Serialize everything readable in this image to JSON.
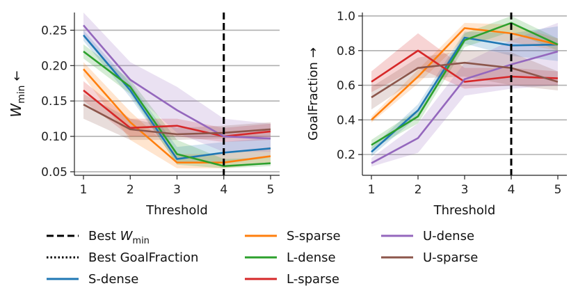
{
  "colors": {
    "S-dense": "#1f77b4",
    "S-sparse": "#ff7f0e",
    "L-dense": "#2ca02c",
    "L-sparse": "#d62728",
    "U-dense": "#9467bd",
    "U-sparse": "#8c564b",
    "best_line": "#000000"
  },
  "legend": {
    "best_w": {
      "prefix": "Best ",
      "symbol": "W",
      "sub": "min"
    },
    "best_goal": "Best GoalFraction",
    "series": [
      "S-dense",
      "S-sparse",
      "L-dense",
      "L-sparse",
      "U-dense",
      "U-sparse"
    ]
  },
  "chart_data": [
    {
      "type": "line",
      "xlabel": "Threshold",
      "ylabel": {
        "symbol": "W",
        "sub": "min",
        "arrow": "←"
      },
      "x": [
        1,
        2,
        3,
        4,
        5
      ],
      "xticks": [
        "1",
        "2",
        "3",
        "4",
        "5"
      ],
      "ylim": [
        0.045,
        0.275
      ],
      "yticks": [
        "0.05",
        "0.10",
        "0.15",
        "0.20",
        "0.25"
      ],
      "ytick_values": [
        0.05,
        0.1,
        0.15,
        0.2,
        0.25
      ],
      "grid": "horizontal",
      "best_line_x": 4,
      "series": [
        {
          "name": "S-dense",
          "values": [
            0.243,
            0.165,
            0.068,
            0.077,
            0.083
          ],
          "lower": [
            0.235,
            0.155,
            0.062,
            0.062,
            0.07
          ],
          "upper": [
            0.25,
            0.175,
            0.085,
            0.092,
            0.098
          ]
        },
        {
          "name": "S-sparse",
          "values": [
            0.195,
            0.12,
            0.063,
            0.063,
            0.072
          ],
          "lower": [
            0.185,
            0.095,
            0.055,
            0.055,
            0.062
          ],
          "upper": [
            0.205,
            0.135,
            0.075,
            0.075,
            0.085
          ]
        },
        {
          "name": "L-dense",
          "values": [
            0.22,
            0.17,
            0.075,
            0.058,
            0.062
          ],
          "lower": [
            0.21,
            0.16,
            0.06,
            0.055,
            0.058
          ],
          "upper": [
            0.23,
            0.18,
            0.095,
            0.068,
            0.07
          ]
        },
        {
          "name": "L-sparse",
          "values": [
            0.165,
            0.112,
            0.115,
            0.1,
            0.107
          ],
          "lower": [
            0.15,
            0.1,
            0.1,
            0.092,
            0.095
          ],
          "upper": [
            0.178,
            0.125,
            0.125,
            0.112,
            0.118
          ]
        },
        {
          "name": "U-dense",
          "values": [
            0.257,
            0.18,
            0.137,
            0.1,
            0.097
          ],
          "lower": [
            0.24,
            0.165,
            0.105,
            0.078,
            0.078
          ],
          "upper": [
            0.275,
            0.205,
            0.17,
            0.125,
            0.118
          ]
        },
        {
          "name": "U-sparse",
          "values": [
            0.145,
            0.11,
            0.103,
            0.105,
            0.11
          ],
          "lower": [
            0.125,
            0.095,
            0.095,
            0.097,
            0.1
          ],
          "upper": [
            0.16,
            0.125,
            0.112,
            0.115,
            0.12
          ]
        }
      ]
    },
    {
      "type": "line",
      "xlabel": "Threshold",
      "ylabel": {
        "text": "GoalFraction",
        "arrow": "→"
      },
      "x": [
        1,
        2,
        3,
        4,
        5
      ],
      "xticks": [
        "1",
        "2",
        "3",
        "4",
        "5"
      ],
      "ylim": [
        0.08,
        1.02
      ],
      "yticks": [
        "0.2",
        "0.4",
        "0.6",
        "0.8",
        "1.0"
      ],
      "ytick_values": [
        0.2,
        0.4,
        0.6,
        0.8,
        1.0
      ],
      "grid": "horizontal",
      "best_line_x": 4,
      "series": [
        {
          "name": "S-dense",
          "values": [
            0.215,
            0.455,
            0.875,
            0.83,
            0.835
          ],
          "lower": [
            0.19,
            0.42,
            0.84,
            0.77,
            0.74
          ],
          "upper": [
            0.24,
            0.49,
            0.91,
            0.9,
            0.94
          ]
        },
        {
          "name": "S-sparse",
          "values": [
            0.4,
            0.65,
            0.93,
            0.9,
            0.835
          ],
          "lower": [
            0.385,
            0.61,
            0.87,
            0.85,
            0.8
          ],
          "upper": [
            0.42,
            0.69,
            0.96,
            0.95,
            0.87
          ]
        },
        {
          "name": "L-dense",
          "values": [
            0.255,
            0.42,
            0.86,
            0.96,
            0.835
          ],
          "lower": [
            0.23,
            0.38,
            0.82,
            0.91,
            0.8
          ],
          "upper": [
            0.285,
            0.46,
            0.9,
            1.0,
            0.87
          ]
        },
        {
          "name": "L-sparse",
          "values": [
            0.62,
            0.8,
            0.62,
            0.65,
            0.64
          ],
          "lower": [
            0.56,
            0.7,
            0.58,
            0.6,
            0.6
          ],
          "upper": [
            0.68,
            0.9,
            0.7,
            0.7,
            0.68
          ]
        },
        {
          "name": "U-dense",
          "values": [
            0.15,
            0.295,
            0.635,
            0.72,
            0.795
          ],
          "lower": [
            0.13,
            0.21,
            0.54,
            0.58,
            0.6
          ],
          "upper": [
            0.18,
            0.38,
            0.73,
            0.86,
            0.96
          ]
        },
        {
          "name": "U-sparse",
          "values": [
            0.53,
            0.7,
            0.73,
            0.7,
            0.62
          ],
          "lower": [
            0.46,
            0.64,
            0.65,
            0.6,
            0.57
          ],
          "upper": [
            0.59,
            0.76,
            0.8,
            0.79,
            0.68
          ]
        }
      ]
    }
  ]
}
